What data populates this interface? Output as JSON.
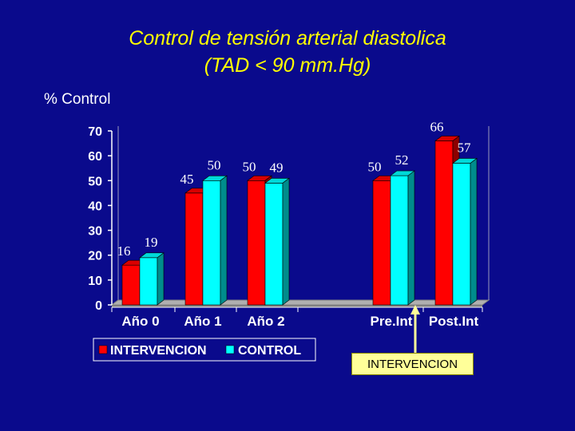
{
  "chart_data": {
    "type": "bar",
    "title": "Control de tensión arterial diastolica",
    "subtitle": "(TAD < 90 mm.Hg)",
    "ylabel": "%  Control",
    "xlabel": "",
    "ylim": [
      0,
      70
    ],
    "yticks": [
      "0",
      "10",
      "20",
      "30",
      "40",
      "50",
      "60",
      "70"
    ],
    "categories": [
      "Año 0",
      "Año 1",
      "Año 2",
      "Pre.Int",
      "Post.Int"
    ],
    "series": [
      {
        "name": "INTERVENCION",
        "values": [
          16,
          45,
          50,
          50,
          66
        ],
        "color": "#ff0000"
      },
      {
        "name": "CONTROL",
        "values": [
          19,
          50,
          49,
          52,
          57
        ],
        "color": "#00ffff"
      }
    ],
    "data_labels": [
      [
        "16",
        "45",
        "50",
        "50",
        "66"
      ],
      [
        "19",
        "50",
        "49",
        "52",
        "57"
      ]
    ],
    "legend_position": "bottom-left",
    "grid": false,
    "annotation": {
      "text": "INTERVENCION",
      "color": "#ffff99"
    }
  }
}
